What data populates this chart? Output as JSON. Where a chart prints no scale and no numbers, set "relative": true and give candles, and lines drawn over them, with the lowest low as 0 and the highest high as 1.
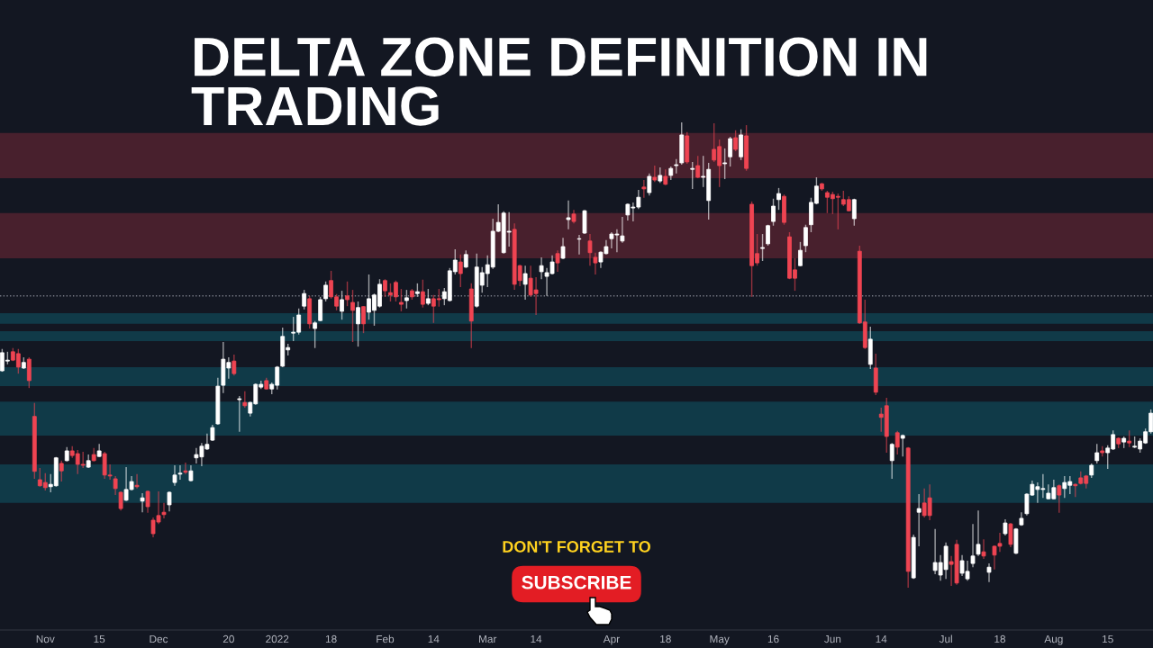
{
  "chart_data": {
    "type": "candlestick",
    "title": "DELTA ZONE DEFINITION IN TRADING",
    "relative": true,
    "tick_labels": "x",
    "annotations": [
      "DON'T FORGET TO",
      "SUBSCRIBE"
    ],
    "categories": [
      null,
      null,
      null,
      null,
      null,
      null,
      null,
      null,
      "Nov",
      null,
      null,
      null,
      null,
      null,
      null,
      null,
      null,
      null,
      "15",
      null,
      null,
      null,
      null,
      null,
      null,
      null,
      null,
      null,
      null,
      "Dec",
      null,
      null,
      null,
      null,
      null,
      null,
      null,
      null,
      null,
      null,
      null,
      null,
      "20",
      null,
      null,
      null,
      null,
      null,
      null,
      null,
      null,
      "2022",
      null,
      null,
      null,
      null,
      null,
      null,
      null,
      null,
      null,
      "18",
      null,
      null,
      null,
      null,
      null,
      null,
      null,
      null,
      null,
      "Feb",
      null,
      null,
      null,
      null,
      null,
      null,
      null,
      null,
      "14",
      null,
      null,
      null,
      null,
      null,
      null,
      null,
      null,
      null,
      "Mar",
      null,
      null,
      null,
      null,
      null,
      null,
      null,
      null,
      "14",
      null,
      null,
      null,
      null,
      null,
      null,
      null,
      null,
      null,
      null,
      null,
      null,
      null,
      "Apr",
      null,
      null,
      null,
      null,
      null,
      null,
      null,
      null,
      null,
      "18",
      null,
      null,
      null,
      null,
      null,
      null,
      null,
      null,
      null,
      "May",
      null,
      null,
      null,
      null,
      null,
      null,
      null,
      null,
      null,
      "16",
      null,
      null,
      null,
      null,
      null,
      null,
      null,
      null,
      null,
      null,
      "Jun",
      null,
      null,
      null,
      null,
      null,
      null,
      null,
      null,
      "14",
      null,
      null,
      null,
      null,
      null,
      null,
      null,
      null,
      null,
      null,
      null,
      "Jul",
      null,
      null,
      null,
      null,
      null,
      null,
      null,
      null,
      null,
      "18",
      null,
      null,
      null,
      null,
      null,
      null,
      null,
      null,
      null,
      "Aug",
      null,
      null,
      null,
      null,
      null,
      null,
      null,
      null,
      null,
      "15",
      null,
      null,
      null,
      null,
      null,
      null,
      null,
      null
    ],
    "ohlc": [
      [
        0.466,
        0.513,
        0.464,
        0.505
      ],
      [
        0.487,
        0.507,
        0.48,
        0.489
      ],
      [
        0.507,
        0.515,
        0.487,
        0.489
      ],
      [
        0.503,
        0.513,
        0.46,
        0.474
      ],
      [
        0.472,
        0.495,
        0.47,
        0.484
      ],
      [
        0.491,
        0.495,
        0.429,
        0.445
      ],
      [
        0.368,
        0.397,
        0.234,
        0.25
      ],
      [
        0.232,
        0.257,
        0.217,
        0.219
      ],
      [
        0.226,
        0.246,
        0.209,
        0.215
      ],
      [
        0.217,
        0.244,
        0.205,
        0.222
      ],
      [
        0.219,
        0.281,
        0.217,
        0.279
      ],
      [
        0.267,
        0.273,
        0.228,
        0.251
      ],
      [
        0.273,
        0.302,
        0.271,
        0.294
      ],
      [
        0.294,
        0.304,
        0.279,
        0.284
      ],
      [
        0.288,
        0.296,
        0.244,
        0.265
      ],
      [
        0.265,
        0.292,
        0.257,
        0.263
      ],
      [
        0.259,
        0.286,
        0.257,
        0.273
      ],
      [
        0.286,
        0.3,
        0.271,
        0.273
      ],
      [
        0.282,
        0.309,
        0.281,
        0.294
      ],
      [
        0.288,
        0.292,
        0.234,
        0.242
      ],
      [
        0.242,
        0.265,
        0.232,
        0.24
      ],
      [
        0.234,
        0.24,
        0.199,
        0.213
      ],
      [
        0.205,
        0.207,
        0.166,
        0.17
      ],
      [
        0.188,
        0.259,
        0.186,
        0.211
      ],
      [
        0.211,
        0.24,
        0.209,
        0.228
      ],
      [
        0.22,
        0.244,
        0.213,
        0.217
      ],
      [
        0.186,
        0.203,
        0.162,
        0.193
      ],
      [
        0.207,
        0.209,
        0.161,
        0.174
      ],
      [
        0.145,
        0.151,
        0.108,
        0.116
      ],
      [
        0.155,
        0.207,
        0.137,
        0.141
      ],
      [
        0.162,
        0.182,
        0.149,
        0.157
      ],
      [
        0.178,
        0.207,
        0.164,
        0.205
      ],
      [
        0.226,
        0.263,
        0.219,
        0.242
      ],
      [
        0.244,
        0.263,
        0.232,
        0.246
      ],
      [
        0.251,
        0.269,
        0.244,
        0.248
      ],
      [
        0.23,
        0.263,
        0.228,
        0.251
      ],
      [
        0.279,
        0.3,
        0.267,
        0.286
      ],
      [
        0.281,
        0.311,
        0.261,
        0.304
      ],
      [
        0.298,
        0.331,
        0.296,
        0.308
      ],
      [
        0.317,
        0.35,
        0.315,
        0.344
      ],
      [
        0.352,
        0.451,
        0.35,
        0.433
      ],
      [
        0.435,
        0.528,
        0.418,
        0.491
      ],
      [
        0.472,
        0.495,
        0.449,
        0.484
      ],
      [
        0.487,
        0.501,
        0.456,
        0.46
      ],
      [
        0.404,
        0.412,
        0.335,
        0.406
      ],
      [
        0.398,
        0.422,
        0.387,
        0.391
      ],
      [
        0.375,
        0.4,
        0.368,
        0.398
      ],
      [
        0.395,
        0.439,
        0.393,
        0.437
      ],
      [
        0.431,
        0.445,
        0.427,
        0.437
      ],
      [
        0.445,
        0.451,
        0.426,
        0.427
      ],
      [
        0.427,
        0.441,
        0.416,
        0.437
      ],
      [
        0.435,
        0.476,
        0.426,
        0.474
      ],
      [
        0.476,
        0.559,
        0.474,
        0.54
      ],
      [
        0.511,
        0.524,
        0.499,
        0.516
      ],
      [
        0.547,
        0.582,
        0.53,
        0.549
      ],
      [
        0.549,
        0.6,
        0.544,
        0.586
      ],
      [
        0.605,
        0.64,
        0.598,
        0.632
      ],
      [
        0.621,
        0.627,
        0.557,
        0.567
      ],
      [
        0.557,
        0.573,
        0.515,
        0.569
      ],
      [
        0.574,
        0.625,
        0.573,
        0.619
      ],
      [
        0.621,
        0.658,
        0.615,
        0.65
      ],
      [
        0.66,
        0.681,
        0.621,
        0.625
      ],
      [
        0.625,
        0.631,
        0.596,
        0.605
      ],
      [
        0.594,
        0.638,
        0.576,
        0.619
      ],
      [
        0.627,
        0.658,
        0.605,
        0.619
      ],
      [
        0.613,
        0.64,
        0.528,
        0.596
      ],
      [
        0.567,
        0.615,
        0.518,
        0.602
      ],
      [
        0.604,
        0.605,
        0.547,
        0.567
      ],
      [
        0.592,
        0.673,
        0.576,
        0.621
      ],
      [
        0.596,
        0.632,
        0.563,
        0.629
      ],
      [
        0.605,
        0.663,
        0.602,
        0.652
      ],
      [
        0.66,
        0.663,
        0.625,
        0.638
      ],
      [
        0.634,
        0.654,
        0.615,
        0.629
      ],
      [
        0.656,
        0.66,
        0.615,
        0.625
      ],
      [
        0.613,
        0.642,
        0.594,
        0.609
      ],
      [
        0.617,
        0.64,
        0.6,
        0.623
      ],
      [
        0.638,
        0.642,
        0.619,
        0.625
      ],
      [
        0.632,
        0.654,
        0.625,
        0.636
      ],
      [
        0.636,
        0.662,
        0.602,
        0.609
      ],
      [
        0.611,
        0.642,
        0.607,
        0.621
      ],
      [
        0.621,
        0.629,
        0.569,
        0.605
      ],
      [
        0.621,
        0.642,
        0.604,
        0.619
      ],
      [
        0.621,
        0.644,
        0.607,
        0.636
      ],
      [
        0.617,
        0.687,
        0.615,
        0.681
      ],
      [
        0.679,
        0.727,
        0.673,
        0.704
      ],
      [
        0.7,
        0.716,
        0.646,
        0.675
      ],
      [
        0.689,
        0.725,
        0.687,
        0.716
      ],
      [
        0.642,
        0.654,
        0.515,
        0.573
      ],
      [
        0.605,
        0.718,
        0.602,
        0.689
      ],
      [
        0.65,
        0.689,
        0.634,
        0.677
      ],
      [
        0.675,
        0.714,
        0.646,
        0.694
      ],
      [
        0.689,
        0.793,
        0.685,
        0.766
      ],
      [
        0.766,
        0.824,
        0.764,
        0.785
      ],
      [
        0.72,
        0.809,
        0.718,
        0.805
      ],
      [
        0.764,
        0.807,
        0.733,
        0.766
      ],
      [
        0.77,
        0.783,
        0.64,
        0.652
      ],
      [
        0.692,
        0.694,
        0.648,
        0.66
      ],
      [
        0.652,
        0.692,
        0.619,
        0.675
      ],
      [
        0.665,
        0.692,
        0.625,
        0.629
      ],
      [
        0.64,
        0.667,
        0.586,
        0.632
      ],
      [
        0.679,
        0.71,
        0.663,
        0.692
      ],
      [
        0.669,
        0.687,
        0.627,
        0.677
      ],
      [
        0.675,
        0.714,
        0.673,
        0.7
      ],
      [
        0.718,
        0.725,
        0.679,
        0.698
      ],
      [
        0.708,
        0.752,
        0.706,
        0.733
      ],
      [
        0.791,
        0.832,
        0.77,
        0.795
      ],
      [
        0.803,
        0.812,
        0.783,
        0.787
      ],
      [
        0.749,
        0.758,
        0.716,
        0.75
      ],
      [
        0.762,
        0.812,
        0.76,
        0.81
      ],
      [
        0.745,
        0.76,
        0.692,
        0.72
      ],
      [
        0.71,
        0.72,
        0.673,
        0.698
      ],
      [
        0.7,
        0.723,
        0.687,
        0.721
      ],
      [
        0.718,
        0.747,
        0.716,
        0.733
      ],
      [
        0.75,
        0.764,
        0.729,
        0.76
      ],
      [
        0.758,
        0.77,
        0.721,
        0.76
      ],
      [
        0.745,
        0.797,
        0.741,
        0.756
      ],
      [
        0.801,
        0.826,
        0.789,
        0.824
      ],
      [
        0.816,
        0.828,
        0.787,
        0.818
      ],
      [
        0.818,
        0.855,
        0.814,
        0.839
      ],
      [
        0.861,
        0.876,
        0.838,
        0.857
      ],
      [
        0.849,
        0.89,
        0.843,
        0.884
      ],
      [
        0.882,
        0.907,
        0.872,
        0.876
      ],
      [
        0.874,
        0.903,
        0.87,
        0.886
      ],
      [
        0.884,
        0.899,
        0.865,
        0.867
      ],
      [
        0.886,
        0.905,
        0.876,
        0.901
      ],
      [
        0.907,
        0.921,
        0.89,
        0.909
      ],
      [
        0.913,
        1,
        0.909,
        0.973
      ],
      [
        0.971,
        0.979,
        0.911,
        0.915
      ],
      [
        0.899,
        0.915,
        0.857,
        0.901
      ],
      [
        0.907,
        0.928,
        0.88,
        0.882
      ],
      [
        0.882,
        0.928,
        0.861,
        0.884
      ],
      [
        0.832,
        0.913,
        0.791,
        0.899
      ],
      [
        0.942,
        0.998,
        0.915,
        0.919
      ],
      [
        0.948,
        0.963,
        0.861,
        0.907
      ],
      [
        0.911,
        0.944,
        0.878,
        0.913
      ],
      [
        0.926,
        0.969,
        0.905,
        0.965
      ],
      [
        0.967,
        0.983,
        0.938,
        0.942
      ],
      [
        0.926,
        0.985,
        0.919,
        0.973
      ],
      [
        0.971,
        0.994,
        0.896,
        0.901
      ],
      [
        0.824,
        0.83,
        0.625,
        0.692
      ],
      [
        0.718,
        0.76,
        0.692,
        0.698
      ],
      [
        0.729,
        0.76,
        0.702,
        0.731
      ],
      [
        0.739,
        0.78,
        0.735,
        0.778
      ],
      [
        0.787,
        0.836,
        0.778,
        0.82
      ],
      [
        0.834,
        0.859,
        0.812,
        0.847
      ],
      [
        0.841,
        0.845,
        0.78,
        0.785
      ],
      [
        0.754,
        0.764,
        0.663,
        0.665
      ],
      [
        0.683,
        0.708,
        0.638,
        0.665
      ],
      [
        0.692,
        0.743,
        0.691,
        0.725
      ],
      [
        0.735,
        0.78,
        0.721,
        0.774
      ],
      [
        0.78,
        0.838,
        0.764,
        0.828
      ],
      [
        0.826,
        0.882,
        0.824,
        0.863
      ],
      [
        0.868,
        0.87,
        0.853,
        0.857
      ],
      [
        0.849,
        0.853,
        0.805,
        0.839
      ],
      [
        0.845,
        0.851,
        0.803,
        0.836
      ],
      [
        0.841,
        0.847,
        0.77,
        0.839
      ],
      [
        0.834,
        0.853,
        0.82,
        0.824
      ],
      [
        0.834,
        0.841,
        0.809,
        0.81
      ],
      [
        0.793,
        0.836,
        0.778,
        0.834
      ],
      [
        0.723,
        0.735,
        0.567,
        0.569
      ],
      [
        0.571,
        0.619,
        0.513,
        0.516
      ],
      [
        0.48,
        0.561,
        0.47,
        0.534
      ],
      [
        0.472,
        0.503,
        0.414,
        0.42
      ],
      [
        0.373,
        0.387,
        0.335,
        0.366
      ],
      [
        0.391,
        0.408,
        0.29,
        0.325
      ],
      [
        0.273,
        0.311,
        0.234,
        0.308
      ],
      [
        0.333,
        0.337,
        0.286,
        0.302
      ],
      [
        0.321,
        0.329,
        0.282,
        0.327
      ],
      [
        0.3,
        0.302,
        0,
        0.035
      ],
      [
        0.021,
        0.114,
        0.019,
        0.108
      ],
      [
        0.162,
        0.201,
        0.089,
        0.17
      ],
      [
        0.182,
        0.213,
        0.151,
        0.155
      ],
      [
        0.193,
        0.222,
        0.145,
        0.155
      ],
      [
        0.037,
        0.126,
        0.029,
        0.054
      ],
      [
        0.027,
        0.07,
        0.015,
        0.054
      ],
      [
        0.039,
        0.097,
        0.019,
        0.089
      ],
      [
        0.056,
        0.068,
        0.004,
        0.05
      ],
      [
        0.093,
        0.103,
        0.006,
        0.01
      ],
      [
        0.031,
        0.07,
        0.025,
        0.058
      ],
      [
        0.019,
        0.058,
        0.015,
        0.035
      ],
      [
        0.052,
        0.137,
        0.044,
        0.068
      ],
      [
        0.072,
        0.166,
        0.068,
        0.093
      ],
      [
        0.077,
        0.104,
        0.062,
        0.068
      ],
      [
        0.033,
        0.052,
        0.012,
        0.044
      ],
      [
        0.089,
        0.091,
        0.039,
        0.07
      ],
      [
        0.095,
        0.118,
        0.077,
        0.089
      ],
      [
        0.116,
        0.147,
        0.112,
        0.139
      ],
      [
        0.137,
        0.139,
        0.087,
        0.093
      ],
      [
        0.074,
        0.128,
        0.072,
        0.126
      ],
      [
        0.135,
        0.162,
        0.133,
        0.149
      ],
      [
        0.159,
        0.203,
        0.155,
        0.201
      ],
      [
        0.199,
        0.23,
        0.197,
        0.222
      ],
      [
        0.211,
        0.226,
        0.182,
        0.217
      ],
      [
        0.211,
        0.244,
        0.193,
        0.213
      ],
      [
        0.191,
        0.222,
        0.19,
        0.203
      ],
      [
        0.191,
        0.232,
        0.19,
        0.215
      ],
      [
        0.219,
        0.222,
        0.161,
        0.199
      ],
      [
        0.213,
        0.24,
        0.193,
        0.226
      ],
      [
        0.22,
        0.24,
        0.201,
        0.228
      ],
      [
        0.222,
        0.224,
        0.195,
        0.219
      ],
      [
        0.236,
        0.25,
        0.222,
        0.224
      ],
      [
        0.24,
        0.242,
        0.213,
        0.224
      ],
      [
        0.242,
        0.267,
        0.236,
        0.263
      ],
      [
        0.273,
        0.309,
        0.267,
        0.29
      ],
      [
        0.294,
        0.304,
        0.282,
        0.29
      ],
      [
        0.29,
        0.306,
        0.255,
        0.3
      ],
      [
        0.298,
        0.338,
        0.296,
        0.329
      ],
      [
        0.321,
        0.323,
        0.3,
        0.309
      ],
      [
        0.313,
        0.325,
        0.3,
        0.321
      ],
      [
        0.315,
        0.338,
        0.302,
        0.311
      ],
      [
        0.302,
        0.325,
        0.3,
        0.304
      ],
      [
        0.298,
        0.321,
        0.29,
        0.315
      ],
      [
        0.311,
        0.342,
        0.309,
        0.335
      ],
      [
        0.335,
        0.383,
        0.331,
        0.375
      ]
    ],
    "colors": [
      "#ffffff",
      "#ffffff",
      "#ef4452",
      "#ef4452",
      "#ffffff",
      "#ef4452",
      "#ef4452",
      "#ef4452",
      "#ef4452",
      "#ffffff",
      "#ffffff",
      "#ef4452",
      "#ffffff",
      "#ef4452",
      "#ef4452",
      "#ef4452",
      "#ffffff",
      "#ef4452",
      "#ffffff",
      "#ef4452",
      "#ef4452",
      "#ef4452",
      "#ef4452",
      "#ffffff",
      "#ffffff",
      "#ef4452",
      "#ffffff",
      "#ef4452",
      "#ef4452",
      "#ef4452",
      "#ef4452",
      "#ffffff",
      "#ffffff",
      "#ffffff",
      "#ef4452",
      "#ffffff",
      "#ffffff",
      "#ffffff",
      "#ffffff",
      "#ffffff",
      "#ffffff",
      "#ffffff",
      "#ffffff",
      "#ef4452",
      "#ffffff",
      "#ef4452",
      "#ffffff",
      "#ffffff",
      "#ffffff",
      "#ef4452",
      "#ffffff",
      "#ffffff",
      "#ffffff",
      "#ffffff",
      "#ffffff",
      "#ffffff",
      "#ffffff",
      "#ef4452",
      "#ffffff",
      "#ffffff",
      "#ffffff",
      "#ef4452",
      "#ef4452",
      "#ffffff",
      "#ef4452",
      "#ef4452",
      "#ffffff",
      "#ef4452",
      "#ffffff",
      "#ffffff",
      "#ffffff",
      "#ef4452",
      "#ef4452",
      "#ef4452",
      "#ef4452",
      "#ffffff",
      "#ef4452",
      "#ffffff",
      "#ef4452",
      "#ffffff",
      "#ef4452",
      "#ef4452",
      "#ffffff",
      "#ffffff",
      "#ffffff",
      "#ef4452",
      "#ffffff",
      "#ef4452",
      "#ffffff",
      "#ffffff",
      "#ffffff",
      "#ffffff",
      "#ffffff",
      "#ffffff",
      "#ffffff",
      "#ef4452",
      "#ef4452",
      "#ffffff",
      "#ef4452",
      "#ef4452",
      "#ffffff",
      "#ffffff",
      "#ffffff",
      "#ef4452",
      "#ffffff",
      "#ffffff",
      "#ef4452",
      "#ffffff",
      "#ffffff",
      "#ef4452",
      "#ef4452",
      "#ffffff",
      "#ffffff",
      "#ffffff",
      "#ffffff",
      "#ffffff",
      "#ffffff",
      "#ffffff",
      "#ffffff",
      "#ef4452",
      "#ffffff",
      "#ef4452",
      "#ffffff",
      "#ef4452",
      "#ffffff",
      "#ffffff",
      "#ffffff",
      "#ef4452",
      "#ffffff",
      "#ef4452",
      "#ffffff",
      "#ffffff",
      "#ef4452",
      "#ef4452",
      "#ffffff",
      "#ffffff",
      "#ef4452",
      "#ffffff",
      "#ef4452",
      "#ef4452",
      "#ef4452",
      "#ffffff",
      "#ffffff",
      "#ffffff",
      "#ffffff",
      "#ef4452",
      "#ef4452",
      "#ef4452",
      "#ffffff",
      "#ffffff",
      "#ffffff",
      "#ffffff",
      "#ef4452",
      "#ef4452",
      "#ef4452",
      "#ef4452",
      "#ef4452",
      "#ef4452",
      "#ffffff",
      "#ef4452",
      "#ef4452",
      "#ffffff",
      "#ef4452",
      "#ef4452",
      "#ef4452",
      "#ffffff",
      "#ef4452",
      "#ffffff",
      "#ef4452",
      "#ffffff",
      "#ffffff",
      "#ef4452",
      "#ef4452",
      "#ffffff",
      "#ffffff",
      "#ffffff",
      "#ef4452",
      "#ef4452",
      "#ffffff",
      "#ffffff",
      "#ffffff",
      "#ffffff",
      "#ef4452",
      "#ffffff",
      "#ef4452",
      "#ef4452",
      "#ffffff",
      "#ef4452",
      "#ffffff",
      "#ffffff",
      "#ffffff",
      "#ffffff",
      "#ffffff",
      "#ffffff",
      "#ffffff",
      "#ffffff",
      "#ef4452",
      "#ffffff",
      "#ffffff",
      "#ef4452",
      "#ef4452",
      "#ef4452",
      "#ffffff",
      "#ffffff",
      "#ef4452",
      "#ffffff",
      "#ffffff",
      "#ef4452",
      "#ffffff",
      "#ef4452",
      "#ffffff",
      "#ffffff",
      "#ffffff",
      "#ffffff"
    ],
    "bands": [
      {
        "axis": "y",
        "from": 0.88,
        "to": 0.977,
        "color": "#48202d"
      },
      {
        "axis": "y",
        "from": 0.708,
        "to": 0.805,
        "color": "#48202d"
      },
      {
        "axis": "y",
        "from": 0.567,
        "to": 0.59,
        "color": "#103a48"
      },
      {
        "axis": "y",
        "from": 0.53,
        "to": 0.551,
        "color": "#103a48"
      },
      {
        "axis": "y",
        "from": 0.433,
        "to": 0.474,
        "color": "#103a48"
      },
      {
        "axis": "y",
        "from": 0.327,
        "to": 0.4,
        "color": "#103a48"
      },
      {
        "axis": "y",
        "from": 0.182,
        "to": 0.265,
        "color": "#103a48"
      }
    ],
    "ref_lines": [
      {
        "axis": "y",
        "value": 0.627,
        "color": "#787b86",
        "line_style": "dotted"
      }
    ]
  }
}
